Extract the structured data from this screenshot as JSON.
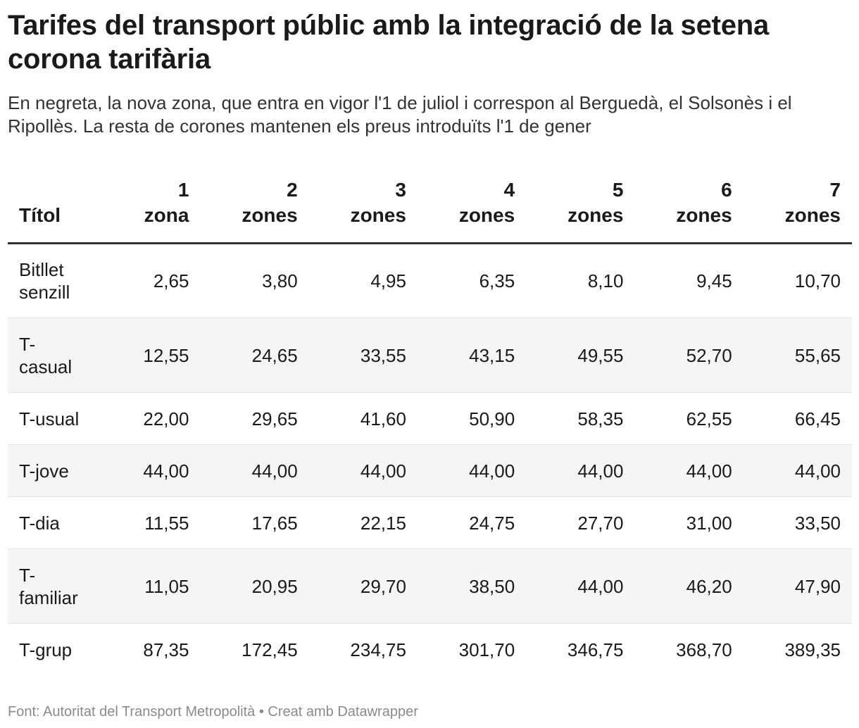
{
  "title": "Tarifes del transport públic amb la integració de la setena corona tarifària",
  "subtitle": "En negreta, la nova zona, que entra en vigor l'1 de juliol i correspon al Berguedà, el Solsonès i el Ripollès. La resta de corones mantenen els preus introduïts l'1 de gener",
  "footer": {
    "source": "Font: Autoritat del Transport Metropolità",
    "separator": " • ",
    "credit": "Creat amb Datawrapper"
  },
  "chart_data": {
    "type": "table",
    "title": "Tarifes del transport públic amb la integració de la setena corona tarifària",
    "first_column_header": "Títol",
    "columns": [
      {
        "num": "1",
        "unit": "zona"
      },
      {
        "num": "2",
        "unit": "zones"
      },
      {
        "num": "3",
        "unit": "zones"
      },
      {
        "num": "4",
        "unit": "zones"
      },
      {
        "num": "5",
        "unit": "zones"
      },
      {
        "num": "6",
        "unit": "zones"
      },
      {
        "num": "7",
        "unit": "zones"
      }
    ],
    "rows": [
      {
        "name": "Bitllet senzill",
        "values": [
          "2,65",
          "3,80",
          "4,95",
          "6,35",
          "8,10",
          "9,45",
          "10,70"
        ]
      },
      {
        "name": "T-casual",
        "values": [
          "12,55",
          "24,65",
          "33,55",
          "43,15",
          "49,55",
          "52,70",
          "55,65"
        ]
      },
      {
        "name": "T-usual",
        "values": [
          "22,00",
          "29,65",
          "41,60",
          "50,90",
          "58,35",
          "62,55",
          "66,45"
        ]
      },
      {
        "name": "T-jove",
        "values": [
          "44,00",
          "44,00",
          "44,00",
          "44,00",
          "44,00",
          "44,00",
          "44,00"
        ]
      },
      {
        "name": "T-dia",
        "values": [
          "11,55",
          "17,65",
          "22,15",
          "24,75",
          "27,70",
          "31,00",
          "33,50"
        ]
      },
      {
        "name": "T-familiar",
        "values": [
          "11,05",
          "20,95",
          "29,70",
          "38,50",
          "44,00",
          "46,20",
          "47,90"
        ]
      },
      {
        "name": "T-grup",
        "values": [
          "87,35",
          "172,45",
          "234,75",
          "301,70",
          "346,75",
          "368,70",
          "389,35"
        ]
      }
    ]
  }
}
